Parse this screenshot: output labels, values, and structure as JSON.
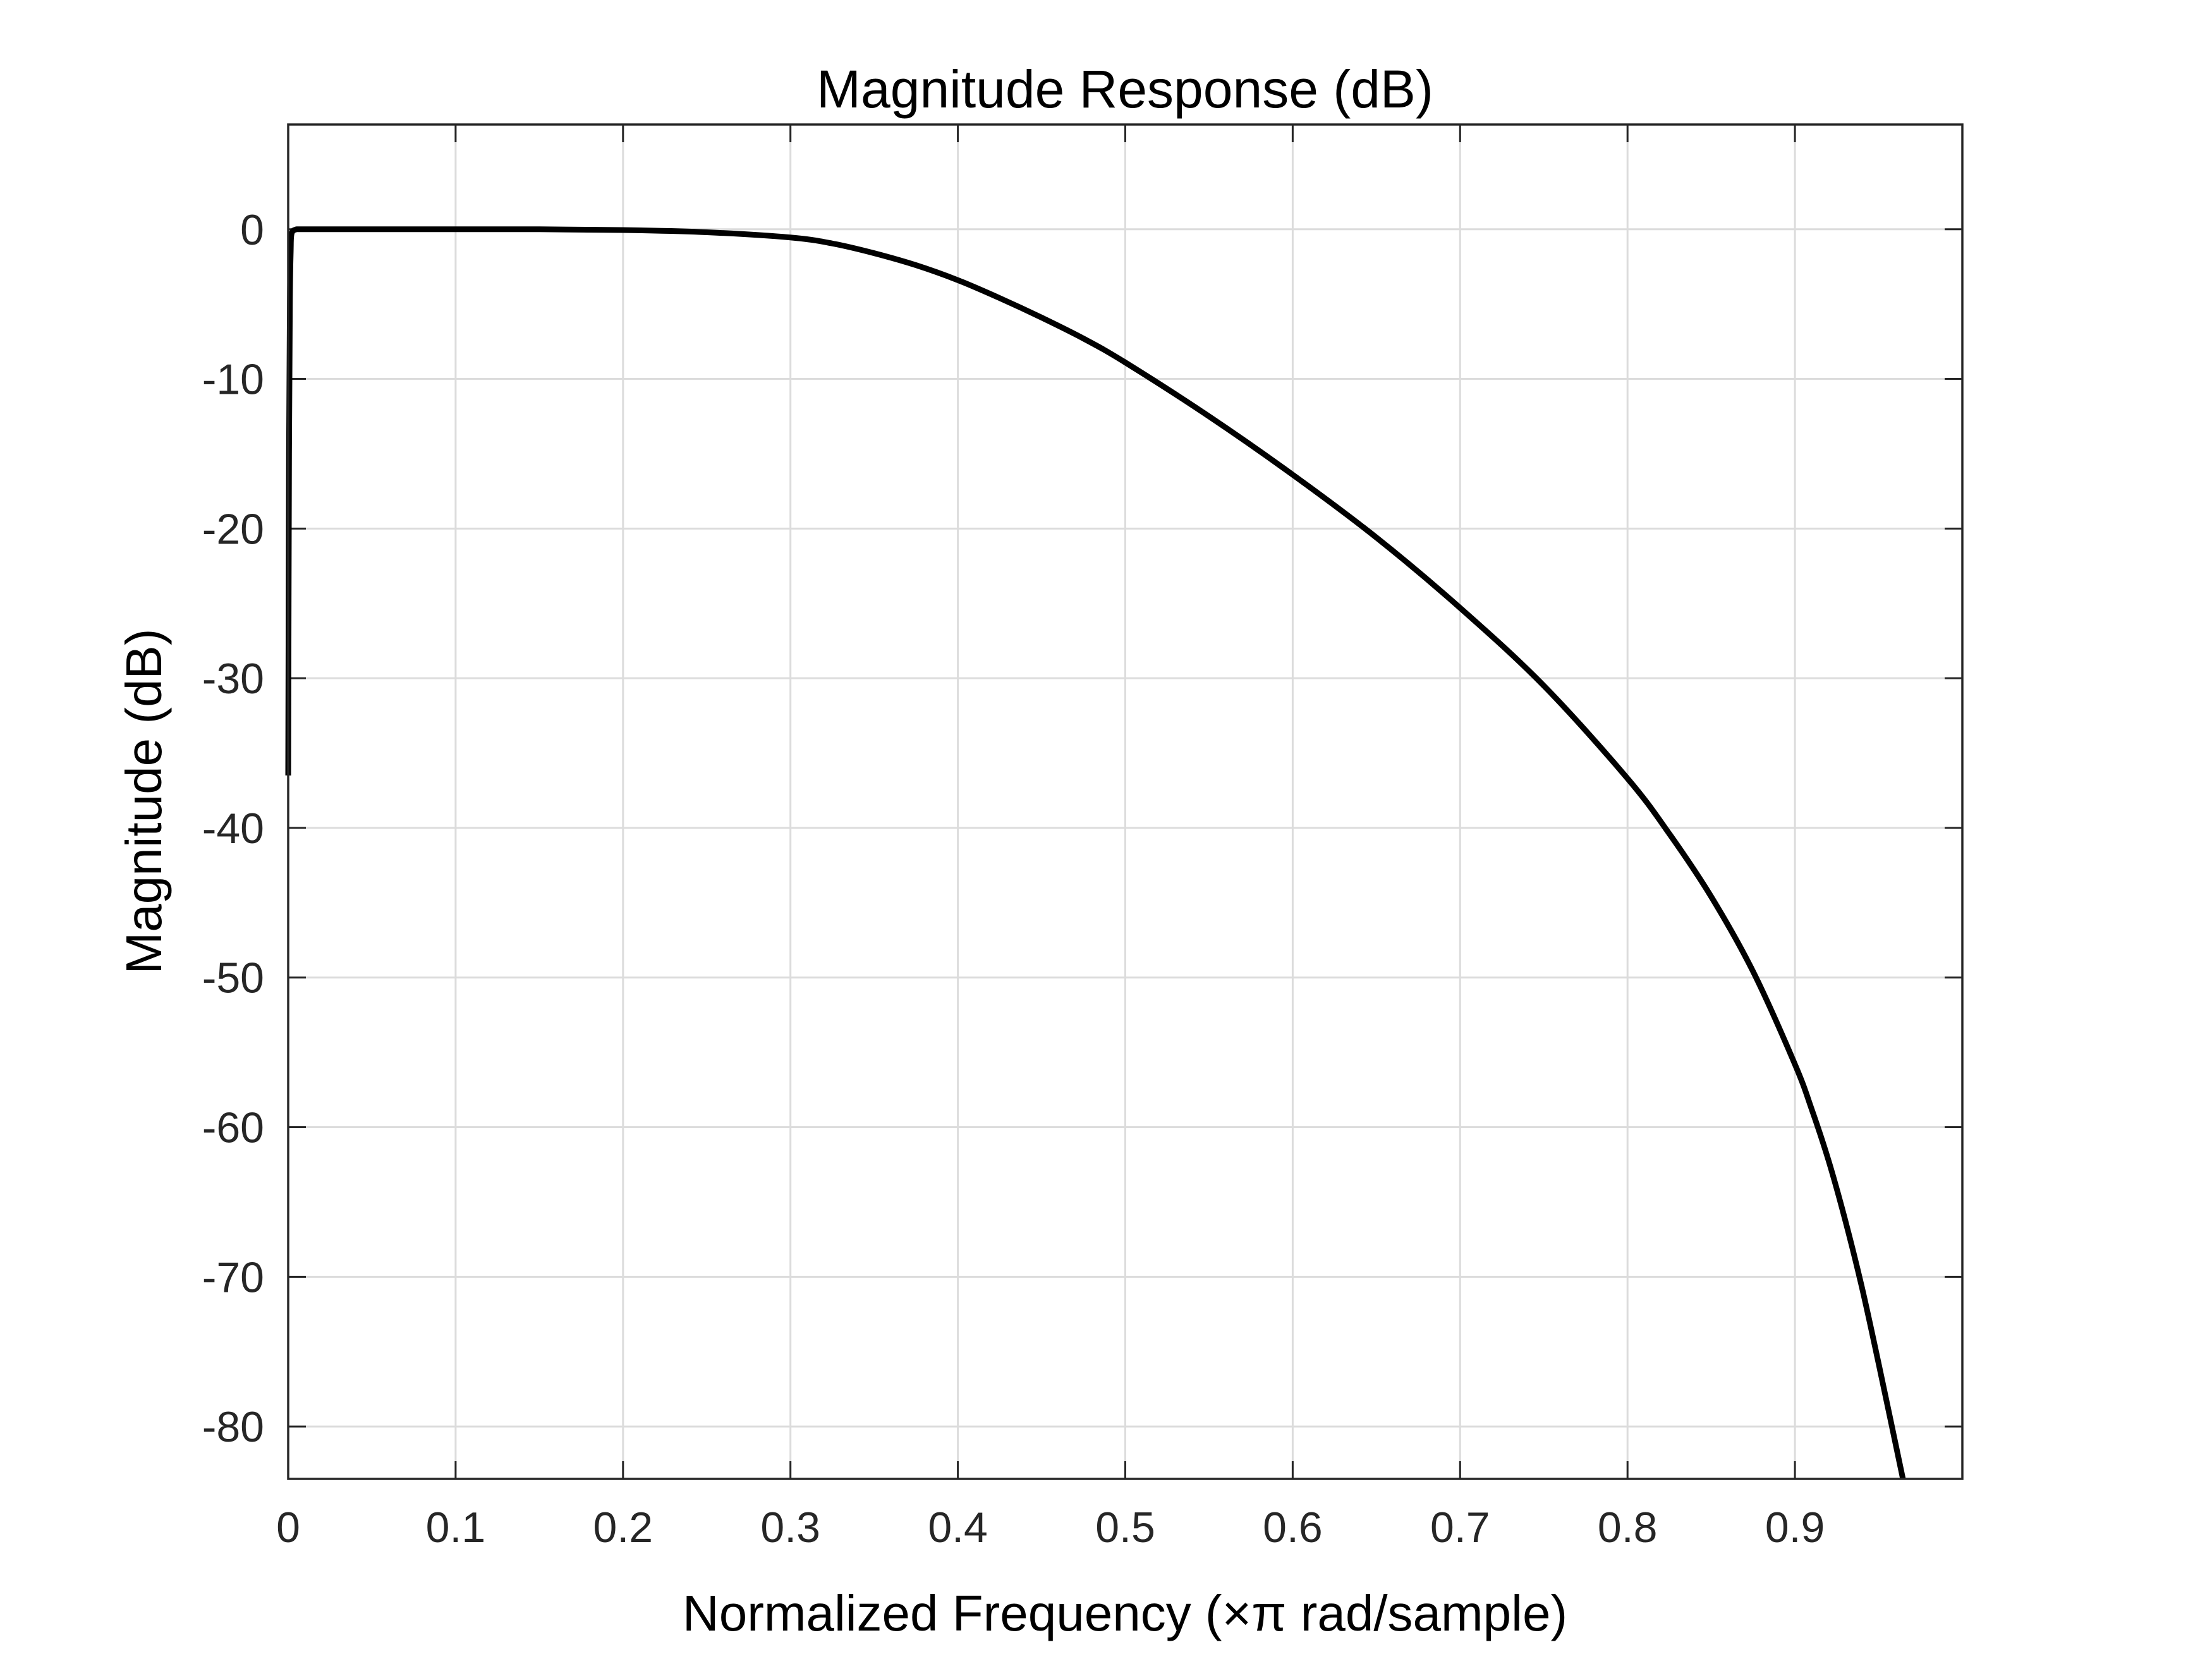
{
  "chart_data": {
    "type": "line",
    "title": "Magnitude Response (dB)",
    "xlabel": "Normalized Frequency (×π rad/sample)",
    "ylabel": "Magnitude (dB)",
    "xlim": [
      0,
      1
    ],
    "ylim": [
      -83.5,
      7
    ],
    "grid": true,
    "x_ticks": [
      0,
      0.1,
      0.2,
      0.3,
      0.4,
      0.5,
      0.6,
      0.7,
      0.8,
      0.9
    ],
    "x_tick_labels": [
      "0",
      "0.1",
      "0.2",
      "0.3",
      "0.4",
      "0.5",
      "0.6",
      "0.7",
      "0.8",
      "0.9"
    ],
    "y_ticks": [
      0,
      -10,
      -20,
      -30,
      -40,
      -50,
      -60,
      -70,
      -80
    ],
    "y_tick_labels": [
      "0",
      "-10",
      "-20",
      "-30",
      "-40",
      "-50",
      "-60",
      "-70",
      "-80"
    ],
    "colors": {
      "curve": "#000000",
      "grid": "#dcdcdc",
      "axes": "#262626"
    },
    "series": [
      {
        "x": [
          0,
          0.0005,
          0.001,
          0.0015,
          0.002,
          0.005,
          0.01,
          0.05,
          0.1,
          0.15,
          0.2,
          0.25,
          0.3,
          0.325,
          0.35,
          0.375,
          0.4,
          0.425,
          0.45,
          0.475,
          0.5,
          0.55,
          0.6,
          0.65,
          0.7,
          0.75,
          0.8,
          0.825,
          0.85,
          0.875,
          0.9,
          0.91,
          0.92,
          0.93,
          0.94,
          0.95,
          0.9645
        ],
        "y": [
          -36.5,
          -15,
          -5,
          -1.5,
          -0.3,
          0,
          0,
          0,
          0,
          0,
          -0.05,
          -0.2,
          -0.55,
          -0.95,
          -1.6,
          -2.4,
          -3.4,
          -4.6,
          -5.9,
          -7.3,
          -8.9,
          -12.5,
          -16.4,
          -20.6,
          -25.3,
          -30.5,
          -36.7,
          -40.4,
          -44.6,
          -49.6,
          -55.8,
          -58.8,
          -62.2,
          -66.2,
          -70.7,
          -75.8,
          -83.5
        ]
      }
    ]
  }
}
